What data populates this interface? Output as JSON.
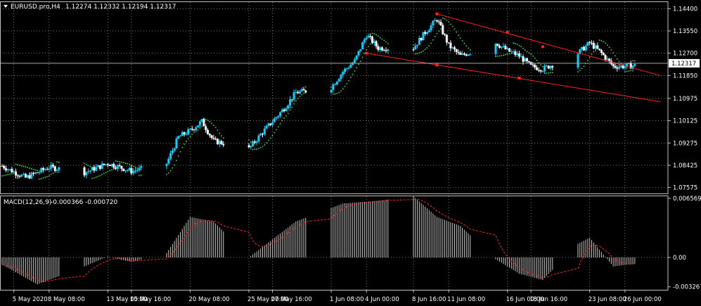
{
  "header": {
    "symbol_label": "EURUSD.pro,H4",
    "ohlc": "1.12274 1.12332 1.12194 1.12317",
    "arrow_icon": "triangle-down-icon"
  },
  "macd_header": {
    "label": "MACD(12,26,9)",
    "values": "-0.000366 -0.000720"
  },
  "price_axis": {
    "ticks": [
      "1.14400",
      "1.13550",
      "1.12700",
      "1.11850",
      "1.10975",
      "1.10125",
      "1.09275",
      "1.08425",
      "1.07575"
    ],
    "current_price": "1.12317"
  },
  "macd_axis": {
    "ticks": [
      "0.006569",
      "0.00",
      "-0.003267"
    ]
  },
  "time_axis": {
    "ticks": [
      "5 May 2020",
      "8 May 08:00",
      "13 May 00:00",
      "15 May 16:00",
      "20 May 08:00",
      "25 May 00:00",
      "27 May 16:00",
      "1 Jun 08:00",
      "4 Jun 00:00",
      "8 Jun 16:00",
      "11 Jun 08:00",
      "16 Jun 00:00",
      "18 Jun 16:00",
      "23 Jun 08:00",
      "26 Jun 00:00"
    ]
  },
  "colors": {
    "background": "#000000",
    "grid": "#c0c0c0",
    "bull_candle": "#00d2ff",
    "bear_candle": "#ffffff",
    "parabolic_sar": "#3cdc3c",
    "trendline": "#ff2020",
    "macd_histogram": "#c8c8c8",
    "macd_signal": "#ff2020",
    "text": "#ffffff"
  },
  "chart_data": [
    {
      "type": "candlestick",
      "title": "EURUSD.pro,H4",
      "indicators": [
        "Parabolic SAR",
        "trendlines"
      ],
      "ylim": [
        1.0735,
        1.1465
      ],
      "x_start": "2020-05-04",
      "x_end": "2020-06-29",
      "anchors": [
        {
          "x": "2020-05-04",
          "y": 1.084
        },
        {
          "x": "2020-05-06",
          "y": 1.0795
        },
        {
          "x": "2020-05-08",
          "y": 1.0835
        },
        {
          "x": "2020-05-11",
          "y": 1.0815
        },
        {
          "x": "2020-05-13",
          "y": 1.085
        },
        {
          "x": "2020-05-15",
          "y": 1.082
        },
        {
          "x": "2020-05-18",
          "y": 1.085
        },
        {
          "x": "2020-05-19",
          "y": 1.095
        },
        {
          "x": "2020-05-20",
          "y": 1.0975
        },
        {
          "x": "2020-05-21",
          "y": 1.101
        },
        {
          "x": "2020-05-22",
          "y": 1.0935
        },
        {
          "x": "2020-05-25",
          "y": 1.0905
        },
        {
          "x": "2020-05-26",
          "y": 1.096
        },
        {
          "x": "2020-05-27",
          "y": 1.101
        },
        {
          "x": "2020-05-28",
          "y": 1.106
        },
        {
          "x": "2020-05-29",
          "y": 1.112
        },
        {
          "x": "2020-06-01",
          "y": 1.114
        },
        {
          "x": "2020-06-02",
          "y": 1.12
        },
        {
          "x": "2020-06-03",
          "y": 1.124
        },
        {
          "x": "2020-06-04",
          "y": 1.134
        },
        {
          "x": "2020-06-05",
          "y": 1.129
        },
        {
          "x": "2020-06-08",
          "y": 1.129
        },
        {
          "x": "2020-06-09",
          "y": 1.135
        },
        {
          "x": "2020-06-10",
          "y": 1.14
        },
        {
          "x": "2020-06-11",
          "y": 1.13
        },
        {
          "x": "2020-06-12",
          "y": 1.126
        },
        {
          "x": "2020-06-15",
          "y": 1.131
        },
        {
          "x": "2020-06-16",
          "y": 1.128
        },
        {
          "x": "2020-06-17",
          "y": 1.126
        },
        {
          "x": "2020-06-18",
          "y": 1.122
        },
        {
          "x": "2020-06-19",
          "y": 1.121
        },
        {
          "x": "2020-06-22",
          "y": 1.127
        },
        {
          "x": "2020-06-23",
          "y": 1.131
        },
        {
          "x": "2020-06-24",
          "y": 1.127
        },
        {
          "x": "2020-06-25",
          "y": 1.122
        },
        {
          "x": "2020-06-26",
          "y": 1.122
        },
        {
          "x": "2020-06-29",
          "y": 1.1232
        }
      ],
      "trendlines": [
        {
          "from": {
            "x": "2020-06-10",
            "y": 1.142
          },
          "to": {
            "x": "2020-06-29",
            "y": 1.1185
          }
        },
        {
          "from": {
            "x": "2020-06-04",
            "y": 1.127
          },
          "to": {
            "x": "2020-06-29",
            "y": 1.1085
          }
        }
      ],
      "trend_markers": [
        {
          "x": "2020-06-04",
          "y": 1.127
        },
        {
          "x": "2020-06-10",
          "y": 1.142
        },
        {
          "x": "2020-06-10",
          "y": 1.1225
        },
        {
          "x": "2020-06-16",
          "y": 1.135
        },
        {
          "x": "2020-06-17",
          "y": 1.1175
        },
        {
          "x": "2020-06-19",
          "y": 1.1295
        }
      ],
      "current_price": 1.12317
    },
    {
      "type": "bar",
      "title": "MACD(12,26,9)",
      "values_label": "-0.000366 -0.000720",
      "ylim": [
        -0.0036,
        0.0068
      ],
      "macd_anchors": [
        {
          "x": "2020-05-04",
          "y": -0.0008
        },
        {
          "x": "2020-05-07",
          "y": -0.003
        },
        {
          "x": "2020-05-11",
          "y": -0.001
        },
        {
          "x": "2020-05-13",
          "y": 0.0001
        },
        {
          "x": "2020-05-15",
          "y": -0.0005
        },
        {
          "x": "2020-05-18",
          "y": 0.0005
        },
        {
          "x": "2020-05-20",
          "y": 0.0045
        },
        {
          "x": "2020-05-22",
          "y": 0.004
        },
        {
          "x": "2020-05-25",
          "y": 0.0
        },
        {
          "x": "2020-05-27",
          "y": 0.002
        },
        {
          "x": "2020-05-29",
          "y": 0.004
        },
        {
          "x": "2020-06-02",
          "y": 0.006
        },
        {
          "x": "2020-06-05",
          "y": 0.0063
        },
        {
          "x": "2020-06-08",
          "y": 0.0068
        },
        {
          "x": "2020-06-10",
          "y": 0.0045
        },
        {
          "x": "2020-06-12",
          "y": 0.0035
        },
        {
          "x": "2020-06-15",
          "y": -0.0002
        },
        {
          "x": "2020-06-17",
          "y": -0.0018
        },
        {
          "x": "2020-06-19",
          "y": -0.0025
        },
        {
          "x": "2020-06-22",
          "y": 0.0015
        },
        {
          "x": "2020-06-23",
          "y": 0.0022
        },
        {
          "x": "2020-06-25",
          "y": -0.001
        },
        {
          "x": "2020-06-29",
          "y": -0.000366
        }
      ],
      "signal_last": -0.00072
    }
  ]
}
